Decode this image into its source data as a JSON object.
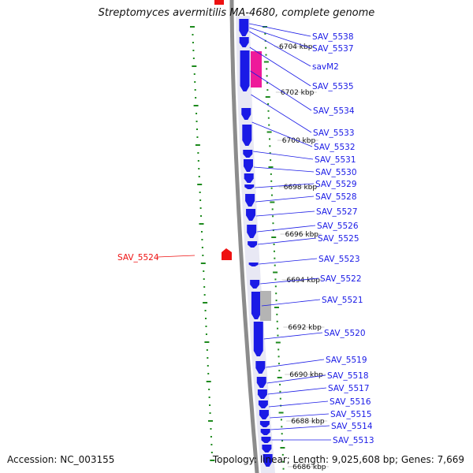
{
  "title": "Streptomyces avermitilis MA-4680, complete genome",
  "footer": {
    "accession": "Accession: NC_003155",
    "summary": "Topology: linear; Length: 9,025,608 bp; Genes: 7,669"
  },
  "scale_labels": [
    "6704 kbp",
    "6702 kbp",
    "6700 kbp",
    "6698 kbp",
    "6696 kbp",
    "6694 kbp",
    "6692 kbp",
    "6690 kbp",
    "6688 kbp",
    "6686 kbp"
  ],
  "genes_right": [
    "SAV_5538",
    "SAV_5537",
    "savM2",
    "SAV_5535",
    "SAV_5534",
    "SAV_5533",
    "SAV_5532",
    "SAV_5531",
    "SAV_5530",
    "SAV_5529",
    "SAV_5528",
    "SAV_5527",
    "SAV_5526",
    "SAV_5525",
    "SAV_5523",
    "SAV_5522",
    "SAV_5521",
    "SAV_5520",
    "SAV_5519",
    "SAV_5518",
    "SAV_5517",
    "SAV_5516",
    "SAV_5515",
    "SAV_5514",
    "SAV_5513"
  ],
  "genes_left": [
    "SAV_5524"
  ],
  "colors": {
    "gene_cds": "#1a1ae6",
    "gene_rna": "#ee1a9a",
    "gene_reverse": "#ee1111",
    "pseudo": "#b4b4b4",
    "backbone": "#8c8c8c",
    "tick": "#1d8a1d",
    "label_line": "#1a1ae6"
  }
}
